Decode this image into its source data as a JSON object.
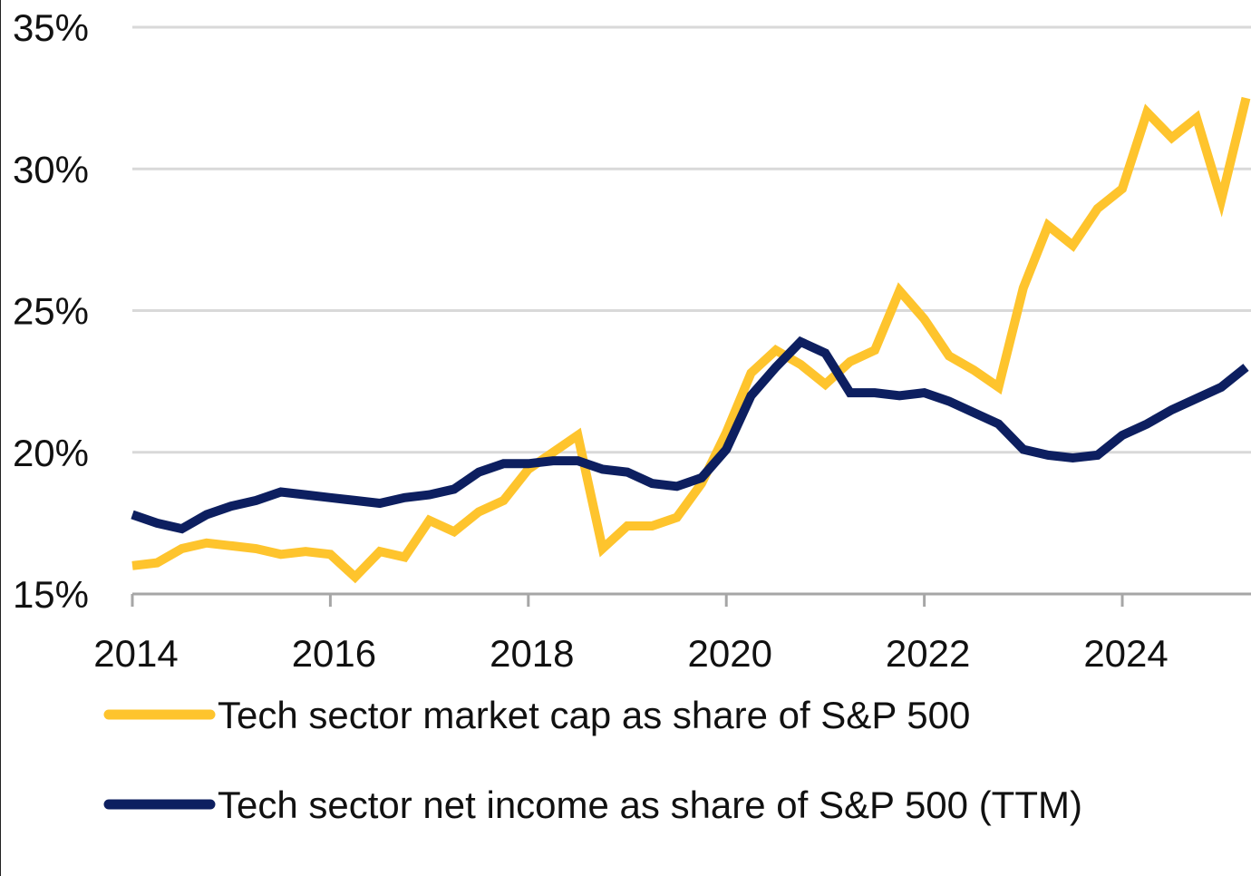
{
  "chart_data": {
    "type": "line",
    "title": "",
    "xlabel": "",
    "ylabel": "",
    "xlim": [
      2014,
      2025.3
    ],
    "ylim": [
      15,
      35
    ],
    "x_ticks": [
      2014,
      2016,
      2018,
      2020,
      2022,
      2024
    ],
    "x_tick_labels": [
      "2014",
      "2016",
      "2018",
      "2020",
      "2022",
      "2024"
    ],
    "y_ticks": [
      15,
      20,
      25,
      30,
      35
    ],
    "y_tick_labels": [
      "15%",
      "20%",
      "25%",
      "30%",
      "35%"
    ],
    "grid": "horizontal",
    "legend_position": "bottom",
    "x": [
      2014.0,
      2014.25,
      2014.5,
      2014.75,
      2015.0,
      2015.25,
      2015.5,
      2015.75,
      2016.0,
      2016.25,
      2016.5,
      2016.75,
      2017.0,
      2017.25,
      2017.5,
      2017.75,
      2018.0,
      2018.25,
      2018.5,
      2018.75,
      2019.0,
      2019.25,
      2019.5,
      2019.75,
      2020.0,
      2020.25,
      2020.5,
      2020.75,
      2021.0,
      2021.25,
      2021.5,
      2021.75,
      2022.0,
      2022.25,
      2022.5,
      2022.75,
      2023.0,
      2023.25,
      2023.5,
      2023.75,
      2024.0,
      2024.25,
      2024.5,
      2024.75,
      2025.0,
      2025.25
    ],
    "series": [
      {
        "name": "Tech sector market cap as share of S&P 500",
        "color": "#FEC42D",
        "values": [
          16.0,
          16.1,
          16.6,
          16.8,
          16.7,
          16.6,
          16.4,
          16.5,
          16.4,
          15.6,
          16.5,
          16.3,
          17.6,
          17.2,
          17.9,
          18.3,
          19.4,
          20.0,
          20.6,
          16.6,
          17.4,
          17.4,
          17.7,
          18.9,
          20.7,
          22.8,
          23.6,
          23.1,
          22.4,
          23.2,
          23.6,
          25.7,
          24.7,
          23.4,
          22.9,
          22.3,
          25.8,
          28.0,
          27.3,
          28.6,
          29.3,
          32.0,
          31.1,
          31.8,
          28.9,
          32.5
        ]
      },
      {
        "name": "Tech sector net income as share of S&P 500 (TTM)",
        "color": "#0D1F60",
        "values": [
          17.8,
          17.5,
          17.3,
          17.8,
          18.1,
          18.3,
          18.6,
          18.5,
          18.4,
          18.3,
          18.2,
          18.4,
          18.5,
          18.7,
          19.3,
          19.6,
          19.6,
          19.7,
          19.7,
          19.4,
          19.3,
          18.9,
          18.8,
          19.1,
          20.1,
          22.0,
          23.0,
          23.9,
          23.5,
          22.1,
          22.1,
          22.0,
          22.1,
          21.8,
          21.4,
          21.0,
          20.1,
          19.9,
          19.8,
          19.9,
          20.6,
          21.0,
          21.5,
          21.9,
          22.3,
          23.0
        ]
      }
    ]
  }
}
